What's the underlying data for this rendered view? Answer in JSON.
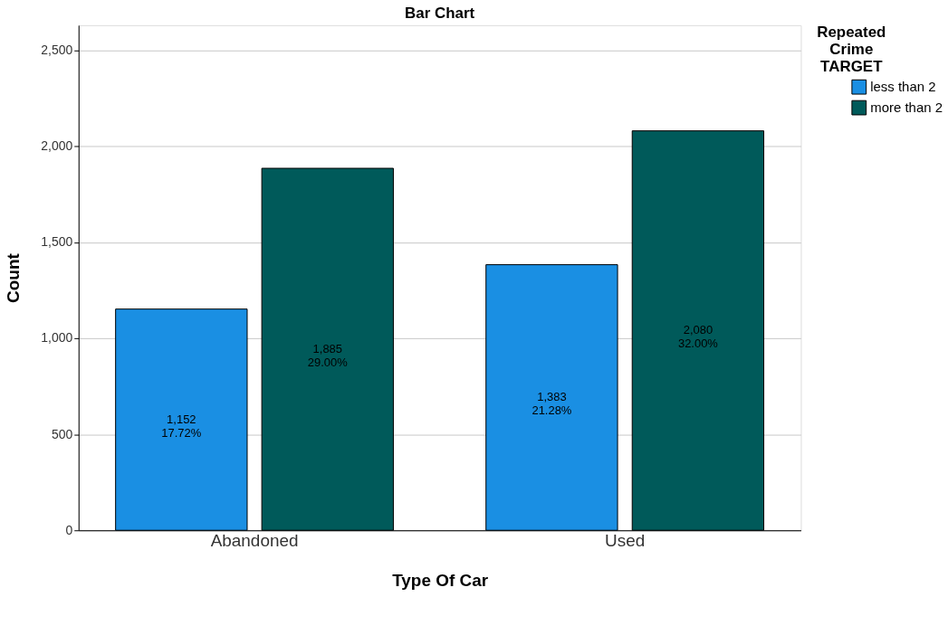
{
  "chart_data": {
    "type": "bar",
    "title": "Bar Chart",
    "xlabel": "Type Of Car",
    "ylabel": "Count",
    "legend_title": "Repeated Crime TARGET",
    "categories": [
      "Abandoned",
      "Used"
    ],
    "series": [
      {
        "name": "less than 2",
        "color": "#1a8fe3",
        "values": [
          1152,
          1383
        ],
        "value_labels": [
          "1,152\n17.72%",
          "1,383\n21.28%"
        ]
      },
      {
        "name": "more than 2",
        "color": "#005a5a",
        "values": [
          1885,
          2080
        ],
        "value_labels": [
          "1,885\n29.00%",
          "2,080\n32.00%"
        ]
      }
    ],
    "ylim": [
      0,
      2630
    ],
    "yticks": [
      0,
      500,
      {
        "value": 1000,
        "label": "1,000"
      },
      {
        "value": 1500,
        "label": "1,500"
      },
      {
        "value": 2000,
        "label": "2,000"
      },
      {
        "value": 2500,
        "label": "2,500"
      }
    ],
    "grid": "y",
    "legend": "top right"
  }
}
